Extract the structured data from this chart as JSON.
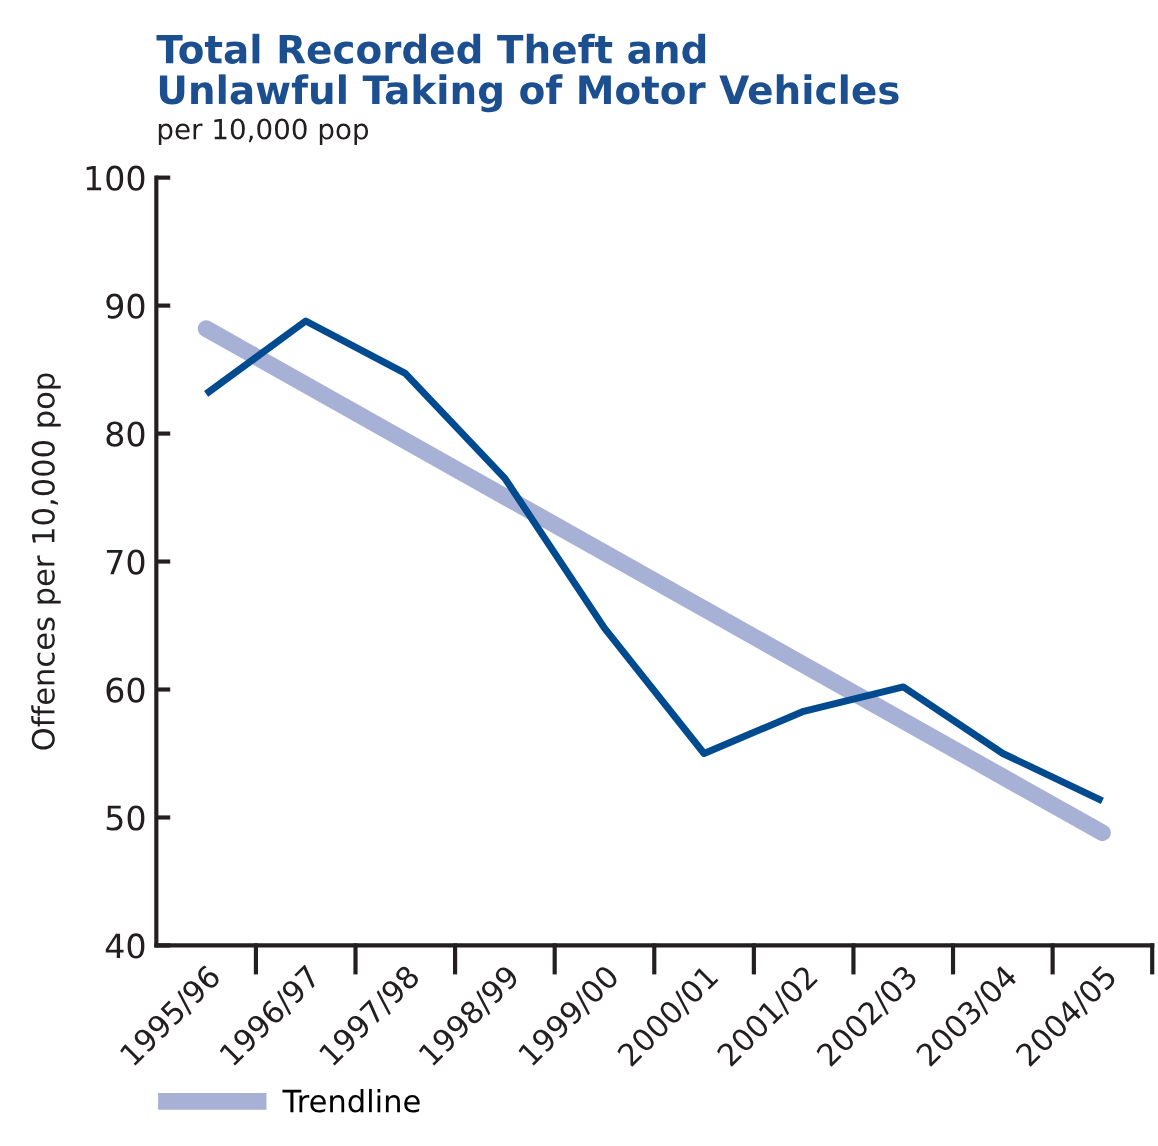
{
  "chart_data": {
    "type": "line",
    "title": "Total Recorded Theft and\nUnlawful Taking of Motor Vehicles",
    "subtitle": "per 10,000 pop",
    "ylabel": "Offences per 10,000 pop",
    "categories": [
      "1995/96",
      "1996/97",
      "1997/98",
      "1998/99",
      "1999/00",
      "2000/01",
      "2001/02",
      "2002/03",
      "2003/04",
      "2004/05"
    ],
    "series": [
      {
        "color": "#a7b1d6",
        "x": [
          "1995/96",
          "2004/05"
        ],
        "values": [
          88.2,
          48.8
        ],
        "name": "Trendline"
      },
      {
        "color": "#004a8f",
        "values": [
          83.1,
          88.8,
          84.7,
          76.5,
          64.8,
          55.0,
          58.3,
          60.2,
          55.0,
          51.3
        ]
      }
    ],
    "ylim": [
      40,
      100
    ],
    "yticks": [
      40,
      50,
      60,
      70,
      80,
      90,
      100
    ],
    "grid": false,
    "legend": "bottom left",
    "marker": "none",
    "line_style": "solid"
  }
}
